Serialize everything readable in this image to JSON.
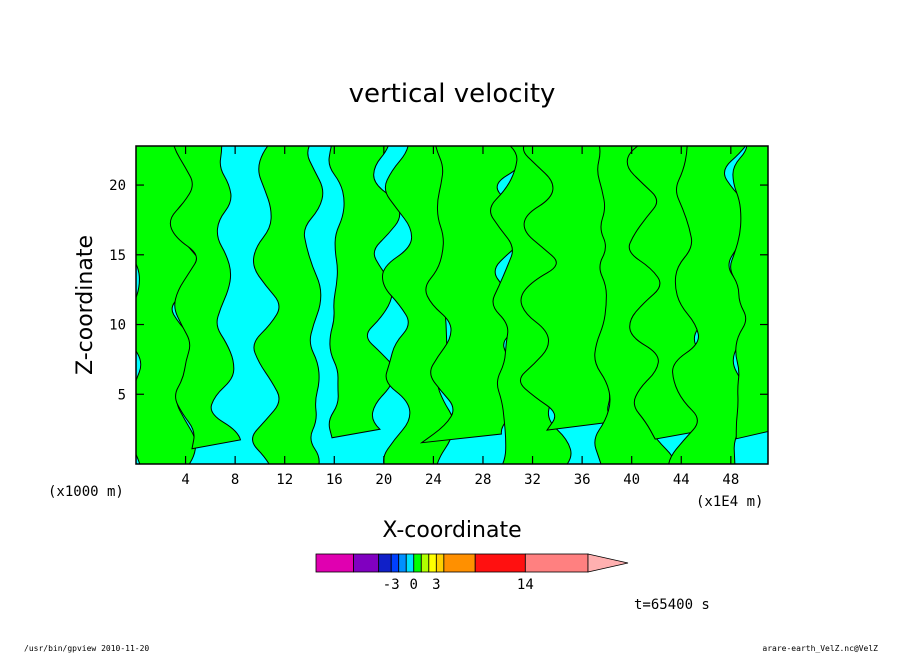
{
  "chart_data": {
    "type": "heatmap",
    "title": "vertical velocity",
    "xlabel": "X-coordinate",
    "ylabel": "Z-coordinate",
    "x_unit_left": "(x1000 m)",
    "x_unit_right": "(x1E4 m)",
    "xlim": [
      0,
      51
    ],
    "ylim": [
      0,
      22.8
    ],
    "x_ticks": [
      4,
      8,
      12,
      16,
      20,
      24,
      28,
      32,
      36,
      40,
      44,
      48
    ],
    "y_ticks": [
      5,
      10,
      15,
      20
    ],
    "field_colors": {
      "negative": "#00ffff",
      "positive": "#00ff00",
      "contour": "#000000"
    },
    "updraft_columns_x": [
      2,
      5.5,
      12.5,
      18,
      23,
      27.5,
      32,
      35.5,
      40,
      43.5,
      46.5,
      50.5
    ],
    "colorbar": {
      "segments": [
        {
          "color": "#e000b0",
          "weight": 3
        },
        {
          "color": "#8000c0",
          "weight": 2
        },
        {
          "color": "#1020c8",
          "weight": 1
        },
        {
          "color": "#0040ff",
          "weight": 0.6
        },
        {
          "color": "#0090ff",
          "weight": 0.6
        },
        {
          "color": "#00e0ff",
          "weight": 0.6
        },
        {
          "color": "#00ff00",
          "weight": 0.6
        },
        {
          "color": "#b0ff00",
          "weight": 0.6
        },
        {
          "color": "#ffff00",
          "weight": 0.6
        },
        {
          "color": "#ffd000",
          "weight": 0.6
        },
        {
          "color": "#ff9000",
          "weight": 2.5
        },
        {
          "color": "#ff1010",
          "weight": 4
        },
        {
          "color": "#ff8080",
          "weight": 5
        }
      ],
      "arrow_color": "#ffb0b0",
      "labels": [
        "-3",
        "0",
        "3",
        "14"
      ]
    },
    "time_label": "t=65400 s"
  },
  "footer": {
    "left": "/usr/bin/gpview  2010-11-20",
    "right": "arare-earth_VelZ.nc@VelZ"
  }
}
